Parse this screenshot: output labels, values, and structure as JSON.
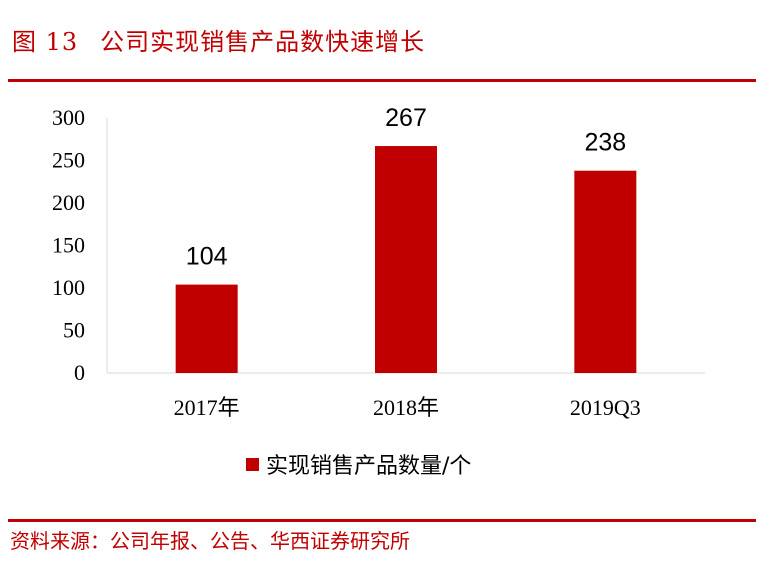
{
  "header": {
    "figure_number": "图 13",
    "title": "公司实现销售产品数快速增长"
  },
  "footer": {
    "source": "资料来源：公司年报、公告、华西证券研究所"
  },
  "colors": {
    "accent": "#c00000",
    "bar": "#c00000",
    "axis": "#d9d9d9"
  },
  "chart_data": {
    "type": "bar",
    "title": "公司实现销售产品数快速增长",
    "categories": [
      "2017年",
      "2018年",
      "2019Q3"
    ],
    "series": [
      {
        "name": "实现销售产品数量/个",
        "values": [
          104,
          267,
          238
        ]
      }
    ],
    "data_labels": [
      "104",
      "267",
      "238"
    ],
    "y_ticks": [
      "0",
      "50",
      "100",
      "150",
      "200",
      "250",
      "300"
    ],
    "ylim": [
      0,
      300
    ],
    "xlabel": "",
    "ylabel": "",
    "grid": false,
    "legend": "bottom"
  }
}
